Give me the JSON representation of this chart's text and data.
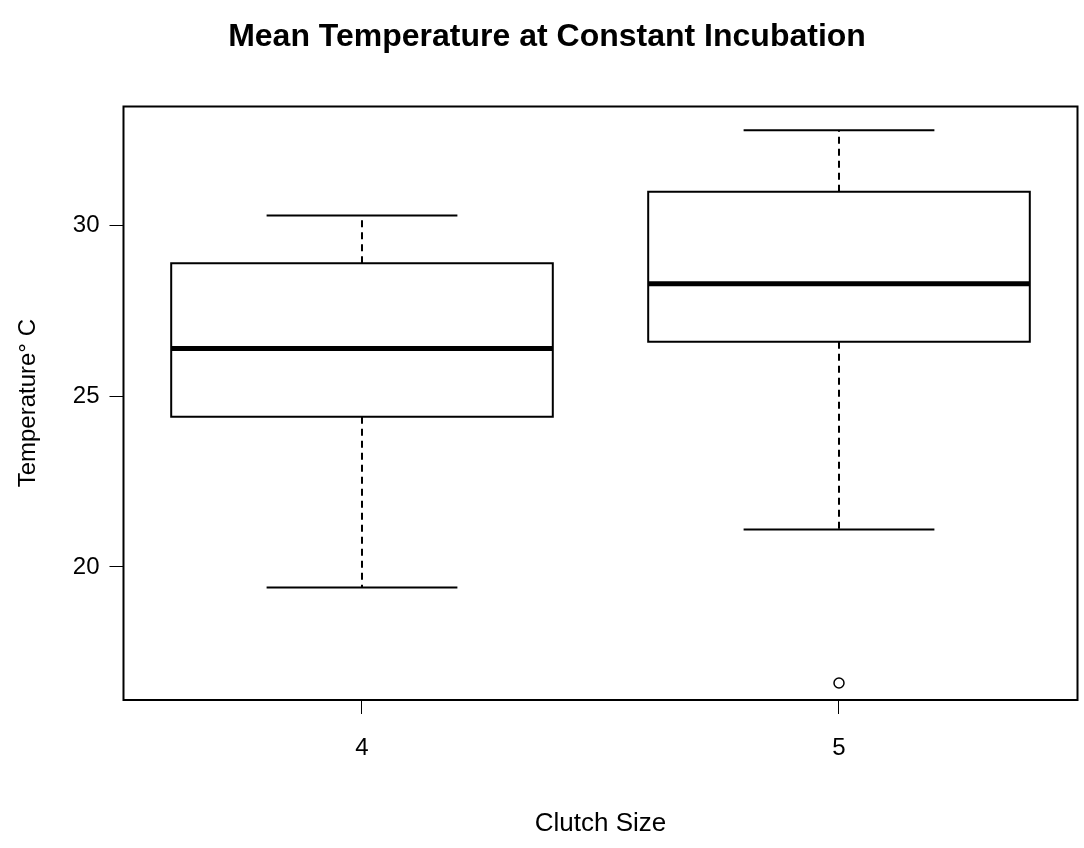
{
  "chart_data": {
    "type": "box",
    "title": "Mean Temperature at Constant Incubation",
    "xlabel": "Clutch Size",
    "ylabel": "Temperature° C",
    "categories": [
      "4",
      "5"
    ],
    "boxes": [
      {
        "low": 19.4,
        "q1": 24.4,
        "median": 26.4,
        "q3": 28.9,
        "high": 30.3
      },
      {
        "low": 21.1,
        "q1": 26.6,
        "median": 28.3,
        "q3": 31.0,
        "high": 32.8,
        "outliers": [
          16.6
        ]
      }
    ],
    "ylim": [
      16.1,
      33.5
    ],
    "yticks": [
      20,
      25,
      30
    ],
    "grid": false,
    "legend": false
  }
}
